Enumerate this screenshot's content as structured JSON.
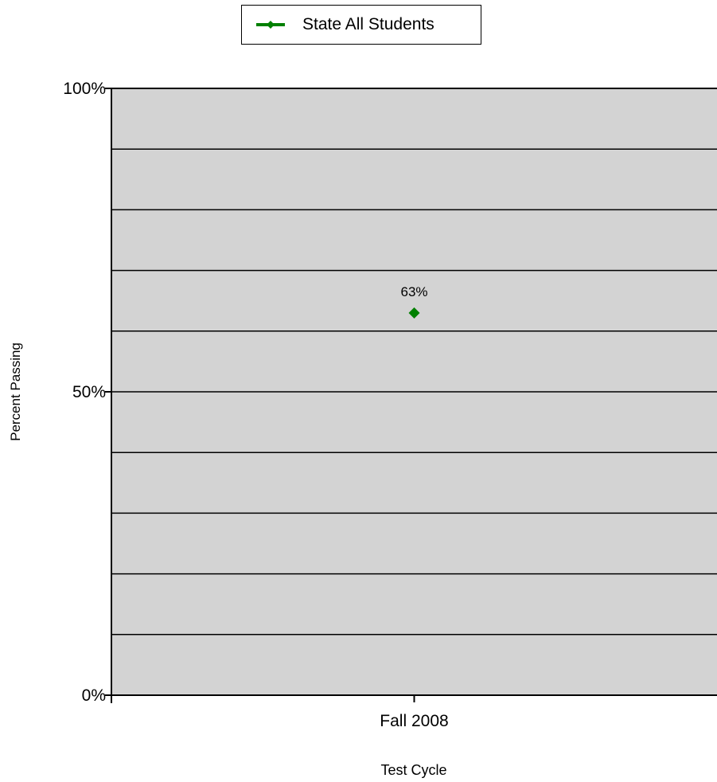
{
  "chart_data": {
    "type": "line",
    "categories": [
      "Fall 2008"
    ],
    "series": [
      {
        "name": "State All Students",
        "values": [
          63
        ],
        "color": "#008000",
        "marker": "diamond",
        "data_labels": [
          "63%"
        ]
      }
    ],
    "xlabel": "Test Cycle",
    "ylabel": "Percent Passing",
    "ylim": [
      0,
      100
    ],
    "y_ticks": [
      {
        "value": 0,
        "label": "0%"
      },
      {
        "value": 50,
        "label": "50%"
      },
      {
        "value": 100,
        "label": "100%"
      }
    ],
    "gridline_step": 10,
    "grid": true,
    "plot_background": "#d3d3d3",
    "legend_position": "top-center"
  }
}
